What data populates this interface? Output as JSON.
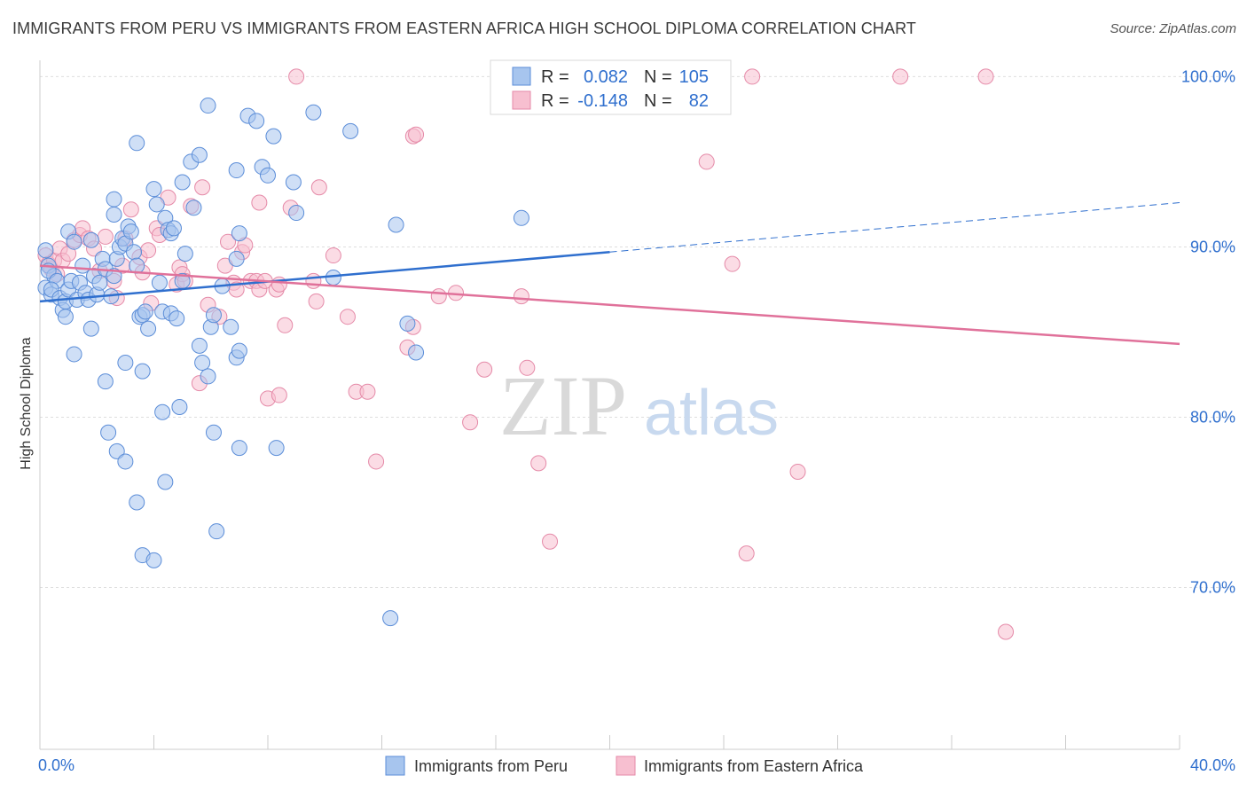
{
  "title": "IMMIGRANTS FROM PERU VS IMMIGRANTS FROM EASTERN AFRICA HIGH SCHOOL DIPLOMA CORRELATION CHART",
  "source": "Source: ZipAtlas.com",
  "watermark": {
    "zip": "ZIP",
    "atlas": "atlas"
  },
  "chart_data": {
    "type": "scatter",
    "xlabel": "",
    "ylabel": "High School Diploma",
    "xlim": [
      0,
      40
    ],
    "ylim": [
      60.5,
      102
    ],
    "x_tick_labels": [
      "0.0%",
      "40.0%"
    ],
    "y_ticks": [
      70,
      80,
      90,
      100
    ],
    "y_tick_labels": [
      "70.0%",
      "80.0%",
      "90.0%",
      "100.0%"
    ],
    "grid": true,
    "legend_position": "top-center",
    "colors": {
      "peru_fill": "#a7c5ee",
      "peru_stroke": "#5b8dd8",
      "peru_line": "#2f6fce",
      "africa_fill": "#f7bfd0",
      "africa_stroke": "#e58aa8",
      "africa_line": "#e0719a",
      "accent_text": "#2f6fce"
    },
    "stats": [
      {
        "r_label": "R =",
        "r_value": "0.082",
        "n_label": "N =",
        "n_value": "105"
      },
      {
        "r_label": "R =",
        "r_value": "-0.148",
        "n_label": "N =",
        "n_value": "82"
      }
    ],
    "series": [
      {
        "name": "Immigrants from Peru",
        "trend": {
          "x0": 0,
          "y0": 86.8,
          "x1": 20,
          "y1": 89.7,
          "dash_to_x": 40,
          "dash_to_y": 92.6
        },
        "points": [
          [
            0.2,
            89.8
          ],
          [
            0.3,
            88.9
          ],
          [
            0.2,
            87.6
          ],
          [
            0.4,
            87.2
          ],
          [
            0.5,
            88.3
          ],
          [
            0.3,
            88.6
          ],
          [
            0.6,
            88.0
          ],
          [
            0.4,
            87.5
          ],
          [
            0.7,
            87.0
          ],
          [
            0.8,
            86.3
          ],
          [
            0.9,
            86.8
          ],
          [
            1.0,
            87.5
          ],
          [
            0.9,
            85.9
          ],
          [
            1.1,
            88.0
          ],
          [
            1.3,
            86.9
          ],
          [
            1.4,
            87.9
          ],
          [
            1.5,
            88.9
          ],
          [
            1.6,
            87.3
          ],
          [
            1.7,
            86.9
          ],
          [
            1.8,
            85.2
          ],
          [
            1.9,
            88.3
          ],
          [
            2.0,
            87.2
          ],
          [
            2.1,
            87.9
          ],
          [
            2.2,
            89.3
          ],
          [
            2.3,
            88.7
          ],
          [
            2.5,
            87.1
          ],
          [
            2.6,
            88.3
          ],
          [
            2.7,
            89.3
          ],
          [
            2.8,
            90.0
          ],
          [
            2.9,
            90.5
          ],
          [
            3.0,
            90.2
          ],
          [
            3.1,
            91.2
          ],
          [
            3.2,
            90.9
          ],
          [
            3.3,
            89.7
          ],
          [
            3.4,
            88.9
          ],
          [
            3.5,
            85.9
          ],
          [
            3.6,
            86.0
          ],
          [
            3.7,
            86.2
          ],
          [
            3.8,
            85.2
          ],
          [
            1.0,
            90.9
          ],
          [
            1.2,
            90.3
          ],
          [
            1.8,
            90.4
          ],
          [
            2.6,
            91.9
          ],
          [
            2.6,
            92.8
          ],
          [
            3.4,
            96.1
          ],
          [
            4.0,
            93.4
          ],
          [
            4.1,
            92.5
          ],
          [
            4.4,
            91.7
          ],
          [
            4.5,
            91.0
          ],
          [
            4.6,
            90.8
          ],
          [
            4.7,
            91.1
          ],
          [
            5.0,
            93.8
          ],
          [
            5.3,
            95.0
          ],
          [
            5.4,
            92.3
          ],
          [
            5.6,
            95.4
          ],
          [
            5.0,
            88.0
          ],
          [
            5.1,
            89.6
          ],
          [
            4.2,
            87.9
          ],
          [
            4.3,
            86.2
          ],
          [
            4.6,
            86.1
          ],
          [
            4.8,
            85.8
          ],
          [
            5.6,
            84.2
          ],
          [
            5.7,
            83.2
          ],
          [
            5.9,
            82.4
          ],
          [
            6.0,
            85.3
          ],
          [
            6.1,
            86.0
          ],
          [
            6.4,
            87.7
          ],
          [
            6.7,
            85.3
          ],
          [
            6.9,
            89.3
          ],
          [
            7.0,
            90.8
          ],
          [
            6.9,
            94.5
          ],
          [
            7.3,
            97.7
          ],
          [
            7.6,
            97.4
          ],
          [
            7.8,
            94.7
          ],
          [
            8.0,
            94.2
          ],
          [
            8.2,
            96.5
          ],
          [
            8.9,
            93.8
          ],
          [
            9.0,
            92.0
          ],
          [
            9.6,
            97.9
          ],
          [
            5.9,
            98.3
          ],
          [
            10.3,
            88.2
          ],
          [
            10.9,
            96.8
          ],
          [
            12.5,
            91.3
          ],
          [
            12.9,
            85.5
          ],
          [
            13.2,
            83.8
          ],
          [
            16.9,
            91.7
          ],
          [
            6.9,
            83.5
          ],
          [
            7.0,
            83.9
          ],
          [
            7.0,
            78.2
          ],
          [
            8.3,
            78.2
          ],
          [
            6.1,
            79.1
          ],
          [
            4.9,
            80.6
          ],
          [
            4.3,
            80.3
          ],
          [
            3.6,
            82.7
          ],
          [
            3.0,
            83.2
          ],
          [
            2.3,
            82.1
          ],
          [
            1.2,
            83.7
          ],
          [
            2.4,
            79.1
          ],
          [
            2.7,
            78.0
          ],
          [
            3.0,
            77.4
          ],
          [
            3.4,
            75.0
          ],
          [
            4.4,
            76.2
          ],
          [
            3.6,
            71.9
          ],
          [
            4.0,
            71.6
          ],
          [
            6.2,
            73.3
          ],
          [
            12.3,
            68.2
          ]
        ]
      },
      {
        "name": "Immigrants from Eastern Africa",
        "trend": {
          "x0": 0,
          "y0": 88.9,
          "x1": 40,
          "y1": 84.3
        },
        "points": [
          [
            0.2,
            89.5
          ],
          [
            0.3,
            89.0
          ],
          [
            0.4,
            88.7
          ],
          [
            0.5,
            89.2
          ],
          [
            0.6,
            88.4
          ],
          [
            0.7,
            89.9
          ],
          [
            0.8,
            89.2
          ],
          [
            1.0,
            89.6
          ],
          [
            1.2,
            90.4
          ],
          [
            1.4,
            90.7
          ],
          [
            1.5,
            91.1
          ],
          [
            1.7,
            90.5
          ],
          [
            1.9,
            89.9
          ],
          [
            2.1,
            88.6
          ],
          [
            2.3,
            90.6
          ],
          [
            2.6,
            88.0
          ],
          [
            2.7,
            87.0
          ],
          [
            2.9,
            88.9
          ],
          [
            3.0,
            90.5
          ],
          [
            3.2,
            92.2
          ],
          [
            3.5,
            89.4
          ],
          [
            3.6,
            88.5
          ],
          [
            3.8,
            89.8
          ],
          [
            3.9,
            86.7
          ],
          [
            4.1,
            91.1
          ],
          [
            4.2,
            90.7
          ],
          [
            4.5,
            92.9
          ],
          [
            4.8,
            87.8
          ],
          [
            4.9,
            88.8
          ],
          [
            5.0,
            88.4
          ],
          [
            5.3,
            92.4
          ],
          [
            5.7,
            93.5
          ],
          [
            5.9,
            86.6
          ],
          [
            6.3,
            85.9
          ],
          [
            6.5,
            88.9
          ],
          [
            6.6,
            90.3
          ],
          [
            6.8,
            87.9
          ],
          [
            6.9,
            87.5
          ],
          [
            7.1,
            89.7
          ],
          [
            7.2,
            90.1
          ],
          [
            7.4,
            88.0
          ],
          [
            7.6,
            88.0
          ],
          [
            7.7,
            87.5
          ],
          [
            7.9,
            88.0
          ],
          [
            8.3,
            87.5
          ],
          [
            8.4,
            87.8
          ],
          [
            7.7,
            92.6
          ],
          [
            8.6,
            85.4
          ],
          [
            8.8,
            92.3
          ],
          [
            9.6,
            88.0
          ],
          [
            9.7,
            86.8
          ],
          [
            9.8,
            93.5
          ],
          [
            10.3,
            89.5
          ],
          [
            10.8,
            85.9
          ],
          [
            11.1,
            81.5
          ],
          [
            11.5,
            81.5
          ],
          [
            11.8,
            77.4
          ],
          [
            12.9,
            84.1
          ],
          [
            13.1,
            85.3
          ],
          [
            13.1,
            96.5
          ],
          [
            14.0,
            87.1
          ],
          [
            14.6,
            87.3
          ],
          [
            15.1,
            79.7
          ],
          [
            15.6,
            82.8
          ],
          [
            16.9,
            87.1
          ],
          [
            17.1,
            82.9
          ],
          [
            17.5,
            77.3
          ],
          [
            17.9,
            72.7
          ],
          [
            8.0,
            81.1
          ],
          [
            8.4,
            81.3
          ],
          [
            9.0,
            100.0
          ],
          [
            13.2,
            96.6
          ],
          [
            23.4,
            95.0
          ],
          [
            24.3,
            89.0
          ],
          [
            24.8,
            72.0
          ],
          [
            25.0,
            100.0
          ],
          [
            26.6,
            76.8
          ],
          [
            30.2,
            100.0
          ],
          [
            33.2,
            100.0
          ],
          [
            33.9,
            67.4
          ],
          [
            5.6,
            82.0
          ],
          [
            5.1,
            88.0
          ]
        ]
      }
    ]
  }
}
